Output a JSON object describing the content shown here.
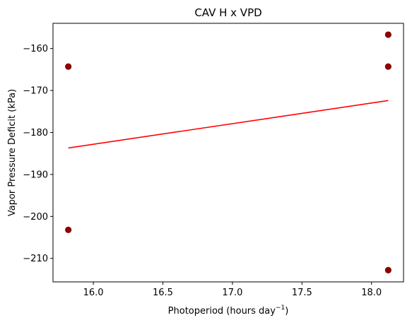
{
  "chart_data": {
    "type": "scatter",
    "title": "CAV H x VPD",
    "xlabel": "Photoperiod (hours day",
    "xlabel_superscript": "−1",
    "xlabel_suffix": ")",
    "ylabel": "Vapor Pressure Deficit (kPa)",
    "xlim": [
      15.71,
      18.23
    ],
    "ylim": [
      -215.6,
      -154.0
    ],
    "xticks": [
      16.0,
      16.5,
      17.0,
      17.5,
      18.0
    ],
    "xtick_labels": [
      "16.0",
      "16.5",
      "17.0",
      "17.5",
      "18.0"
    ],
    "yticks": [
      -210,
      -200,
      -190,
      -180,
      -170,
      -160
    ],
    "ytick_labels": [
      "−210",
      "−200",
      "−190",
      "−180",
      "−170",
      "−160"
    ],
    "grid": false,
    "series": [
      {
        "kind": "scatter",
        "color": "#8b0000",
        "points": [
          {
            "x": 15.82,
            "y": -164.3
          },
          {
            "x": 15.82,
            "y": -203.2
          },
          {
            "x": 18.12,
            "y": -156.7
          },
          {
            "x": 18.12,
            "y": -164.3
          },
          {
            "x": 18.12,
            "y": -212.8
          }
        ]
      },
      {
        "kind": "line",
        "color": "#ff0000",
        "points": [
          {
            "x": 15.82,
            "y": -183.7
          },
          {
            "x": 18.12,
            "y": -172.4
          }
        ]
      }
    ]
  }
}
